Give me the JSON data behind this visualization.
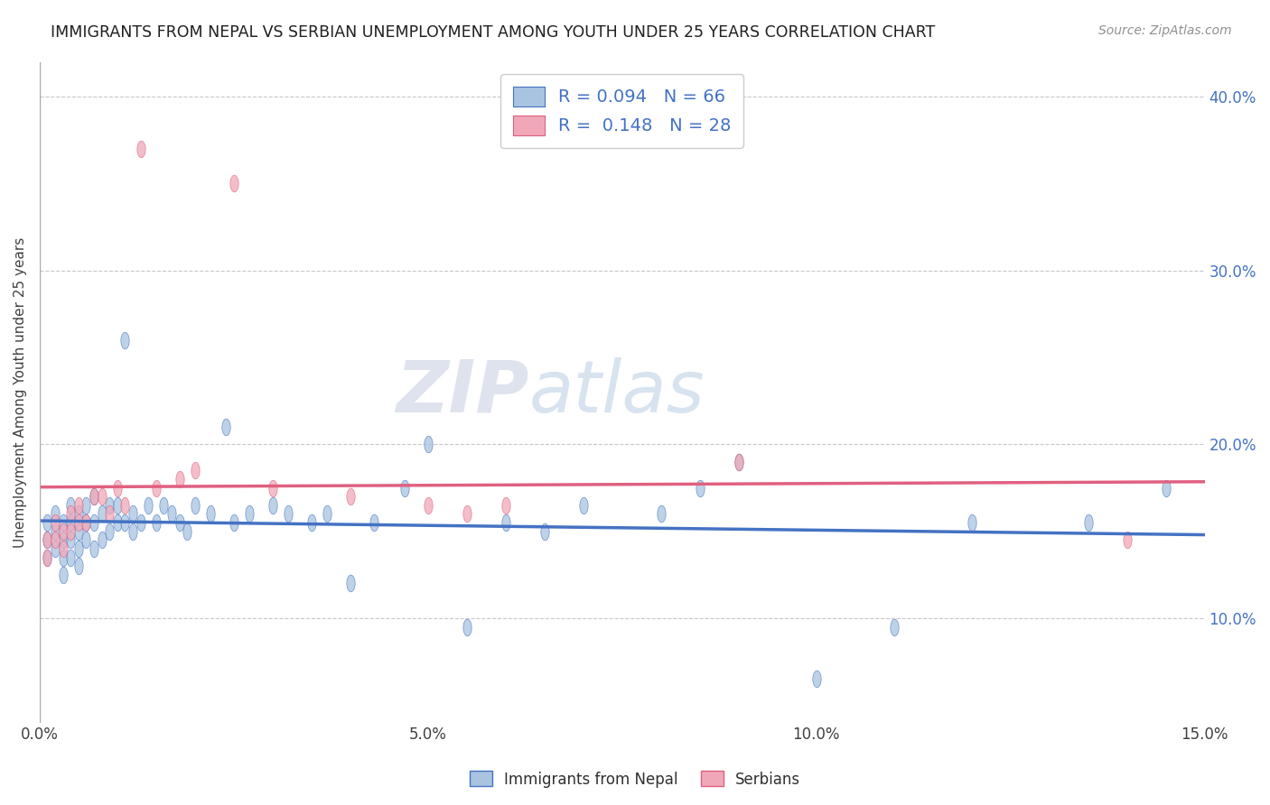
{
  "title": "IMMIGRANTS FROM NEPAL VS SERBIAN UNEMPLOYMENT AMONG YOUTH UNDER 25 YEARS CORRELATION CHART",
  "source": "Source: ZipAtlas.com",
  "ylabel": "Unemployment Among Youth under 25 years",
  "xlim": [
    0.0,
    0.15
  ],
  "ylim": [
    0.04,
    0.42
  ],
  "xticks": [
    0.0,
    0.05,
    0.1,
    0.15
  ],
  "xtick_labels": [
    "0.0%",
    "5.0%",
    "10.0%",
    "15.0%"
  ],
  "yticks": [
    0.1,
    0.2,
    0.3,
    0.4
  ],
  "ytick_labels": [
    "10.0%",
    "20.0%",
    "30.0%",
    "40.0%"
  ],
  "nepal_R": 0.094,
  "nepal_N": 66,
  "serbian_R": 0.148,
  "serbian_N": 28,
  "nepal_color": "#a8c4e0",
  "serbian_color": "#f0a8b8",
  "nepal_line_color": "#4472c4",
  "serbian_line_color": "#e06080",
  "watermark_zip": "ZIP",
  "watermark_atlas": "atlas",
  "background_color": "#ffffff",
  "grid_color": "#c8c8c8",
  "nepal_x": [
    0.001,
    0.001,
    0.001,
    0.002,
    0.002,
    0.002,
    0.003,
    0.003,
    0.003,
    0.003,
    0.004,
    0.004,
    0.004,
    0.004,
    0.005,
    0.005,
    0.005,
    0.005,
    0.006,
    0.006,
    0.006,
    0.007,
    0.007,
    0.007,
    0.008,
    0.008,
    0.009,
    0.009,
    0.01,
    0.01,
    0.011,
    0.011,
    0.012,
    0.012,
    0.013,
    0.014,
    0.015,
    0.016,
    0.017,
    0.018,
    0.019,
    0.02,
    0.022,
    0.024,
    0.025,
    0.027,
    0.03,
    0.032,
    0.035,
    0.037,
    0.04,
    0.043,
    0.047,
    0.05,
    0.055,
    0.06,
    0.065,
    0.07,
    0.08,
    0.085,
    0.09,
    0.1,
    0.11,
    0.12,
    0.135,
    0.145
  ],
  "nepal_y": [
    0.155,
    0.145,
    0.135,
    0.16,
    0.15,
    0.14,
    0.155,
    0.145,
    0.135,
    0.125,
    0.165,
    0.155,
    0.145,
    0.135,
    0.16,
    0.15,
    0.14,
    0.13,
    0.165,
    0.155,
    0.145,
    0.17,
    0.155,
    0.14,
    0.16,
    0.145,
    0.165,
    0.15,
    0.155,
    0.165,
    0.155,
    0.26,
    0.16,
    0.15,
    0.155,
    0.165,
    0.155,
    0.165,
    0.16,
    0.155,
    0.15,
    0.165,
    0.16,
    0.21,
    0.155,
    0.16,
    0.165,
    0.16,
    0.155,
    0.16,
    0.12,
    0.155,
    0.175,
    0.2,
    0.095,
    0.155,
    0.15,
    0.165,
    0.16,
    0.175,
    0.19,
    0.065,
    0.095,
    0.155,
    0.155,
    0.175
  ],
  "serbian_x": [
    0.001,
    0.001,
    0.002,
    0.002,
    0.003,
    0.003,
    0.004,
    0.004,
    0.005,
    0.005,
    0.006,
    0.007,
    0.008,
    0.009,
    0.01,
    0.011,
    0.013,
    0.015,
    0.018,
    0.02,
    0.025,
    0.03,
    0.04,
    0.05,
    0.055,
    0.06,
    0.09,
    0.14
  ],
  "serbian_y": [
    0.145,
    0.135,
    0.155,
    0.145,
    0.15,
    0.14,
    0.16,
    0.15,
    0.165,
    0.155,
    0.155,
    0.17,
    0.17,
    0.16,
    0.175,
    0.165,
    0.37,
    0.175,
    0.18,
    0.185,
    0.35,
    0.175,
    0.17,
    0.165,
    0.16,
    0.165,
    0.19,
    0.145
  ]
}
